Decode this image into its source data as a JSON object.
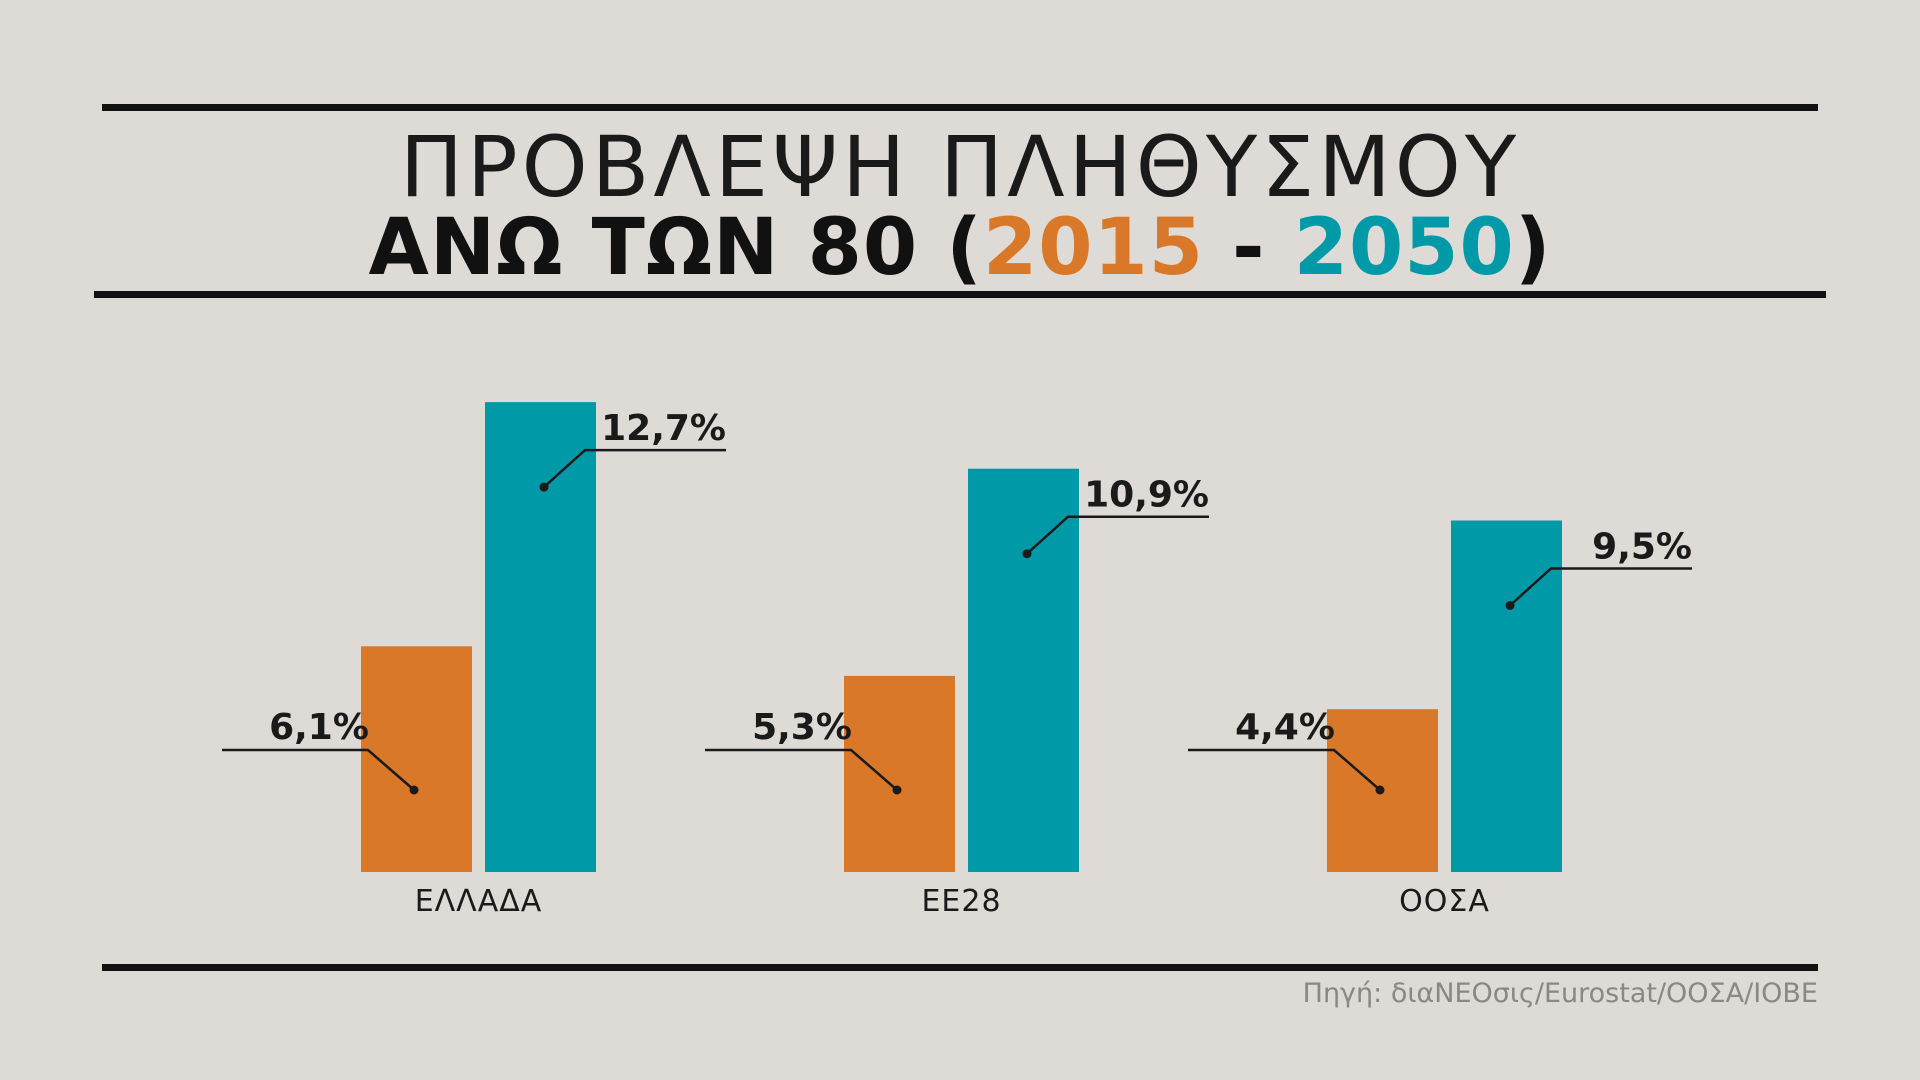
{
  "header": {
    "title_line1": "ΠΡΟΒΛΕΨΗ ΠΛΗΘΥΣΜΟΥ",
    "title_line2_prefix": "ΑΝΩ ΤΩΝ 80 (",
    "title_year_start": "2015",
    "title_dash": " - ",
    "title_year_end": "2050",
    "title_line2_suffix": ")"
  },
  "source": "Πηγή: διαΝΕΟσις/Eurostat/ΟΟΣΑ/IOBE",
  "colors": {
    "background": "#dedad6",
    "series_2015": "#d87828",
    "series_2050": "#0099a8",
    "text": "#1a1a1a",
    "rules": "#111111",
    "source_text": "#8a8784"
  },
  "chart_data": {
    "type": "bar",
    "title": "ΠΡΟΒΛΕΨΗ ΠΛΗΘΥΣΜΟΥ ΑΝΩ ΤΩΝ 80 (2015 - 2050)",
    "categories": [
      "ΕΛΛΑΔΑ",
      "ΕΕ28",
      "ΟΟΣΑ"
    ],
    "series": [
      {
        "name": "2015",
        "color": "#d87828",
        "values": [
          6.1,
          5.3,
          4.4
        ],
        "labels": [
          "6,1%",
          "5,3%",
          "4,4%"
        ]
      },
      {
        "name": "2050",
        "color": "#0099a8",
        "values": [
          12.7,
          10.9,
          9.5
        ],
        "labels": [
          "12,7%",
          "10,9%",
          "9,5%"
        ]
      }
    ],
    "unit": "%",
    "xlabel": "",
    "ylabel": "",
    "grid": false,
    "legend": "title"
  }
}
